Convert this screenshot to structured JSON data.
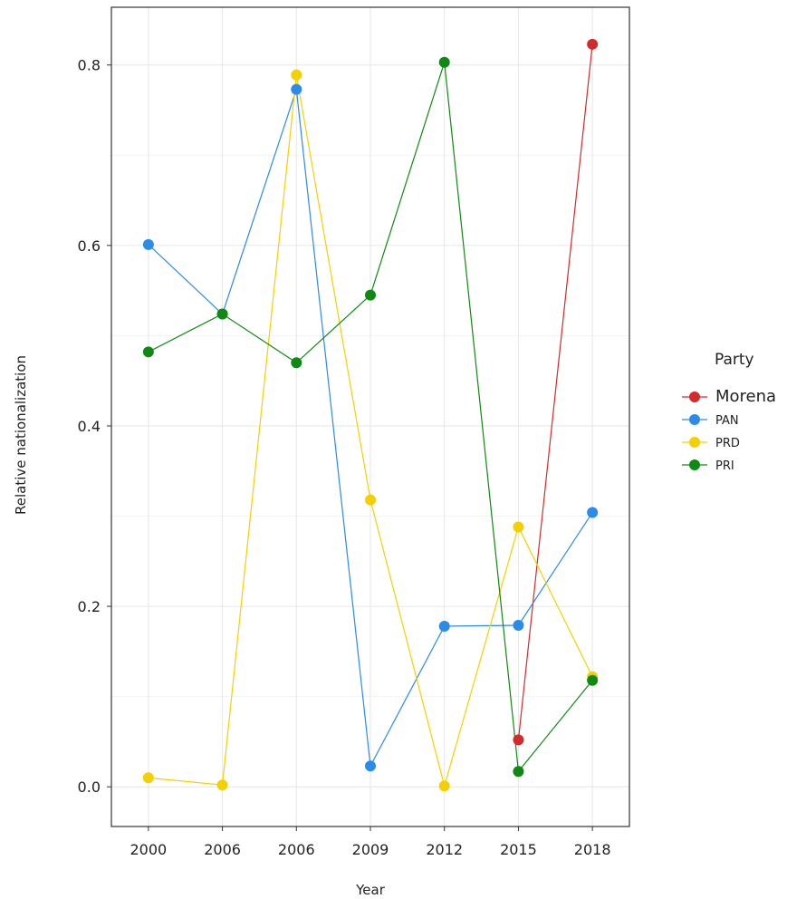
{
  "chart_data": {
    "type": "line",
    "xlabel": "Year",
    "ylabel": "Relative nationalization",
    "categories": [
      "2000",
      "2006",
      "2006",
      "2009",
      "2012",
      "2015",
      "2018"
    ],
    "ylim": [
      -0.044,
      0.864
    ],
    "yticks": [
      0.0,
      0.2,
      0.4,
      0.6,
      0.8
    ],
    "ytick_labels": [
      "0.0",
      "0.2",
      "0.4",
      "0.6",
      "0.8"
    ],
    "grid": true,
    "legend": {
      "title": "Party",
      "placement": "right"
    },
    "series": [
      {
        "name": "Morena",
        "color": "#d42a2a",
        "points": [
          [
            5,
            0.052
          ],
          [
            6,
            0.823
          ]
        ]
      },
      {
        "name": "PAN",
        "color": "#2b8be8",
        "points": [
          [
            0,
            0.601
          ],
          [
            1,
            0.524
          ],
          [
            2,
            0.773
          ],
          [
            3,
            0.023
          ],
          [
            4,
            0.178
          ],
          [
            5,
            0.179
          ],
          [
            6,
            0.304
          ]
        ]
      },
      {
        "name": "PRD",
        "color": "#f5d000",
        "points": [
          [
            0,
            0.01
          ],
          [
            1,
            0.002
          ],
          [
            2,
            0.789
          ],
          [
            3,
            0.318
          ],
          [
            4,
            0.001
          ],
          [
            5,
            0.288
          ],
          [
            6,
            0.122
          ]
        ]
      },
      {
        "name": "PRI",
        "color": "#0e8a12",
        "points": [
          [
            0,
            0.482
          ],
          [
            1,
            0.524
          ],
          [
            2,
            0.47
          ],
          [
            3,
            0.545
          ],
          [
            4,
            0.803
          ],
          [
            5,
            0.017
          ],
          [
            6,
            0.118
          ]
        ]
      }
    ]
  }
}
